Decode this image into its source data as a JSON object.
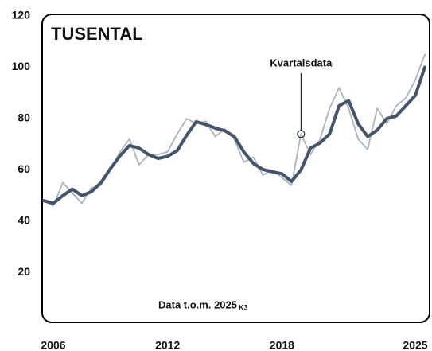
{
  "chart_data": {
    "type": "line",
    "title": "TUSENTAL",
    "note": "Data t.o.m. 2025",
    "note_sub": "K3",
    "x": [
      2005.5,
      2006,
      2006.5,
      2007,
      2007.5,
      2008,
      2008.5,
      2009,
      2009.5,
      2010,
      2010.5,
      2011,
      2011.5,
      2012,
      2012.5,
      2013,
      2013.5,
      2014,
      2014.5,
      2015,
      2015.5,
      2016,
      2016.5,
      2017,
      2017.5,
      2018,
      2018.5,
      2019,
      2019.5,
      2020,
      2020.5,
      2021,
      2021.5,
      2022,
      2022.5,
      2023,
      2023.5,
      2024,
      2024.5,
      2025,
      2025.5
    ],
    "series": [
      {
        "color": "#a9b4c2",
        "width": 1.8,
        "values": [
          48,
          46,
          55,
          51,
          47,
          53,
          54,
          60,
          67,
          72,
          62,
          66,
          66,
          67,
          74,
          80,
          78,
          79,
          73,
          76,
          72,
          63,
          65,
          58,
          60,
          57,
          54,
          74,
          66,
          72,
          84,
          92,
          84,
          72,
          68,
          84,
          78,
          85,
          88,
          95,
          105
        ]
      },
      {
        "color": "#44546a",
        "width": 4,
        "values": [
          48,
          47,
          50,
          52.5,
          50,
          51.5,
          55,
          60.5,
          65.5,
          69.5,
          68.5,
          66,
          64.5,
          65.3,
          67.5,
          73.5,
          78.8,
          77.7,
          76.3,
          75.3,
          73,
          67,
          62.5,
          60.2,
          59.3,
          58.5,
          55.5,
          60,
          68.5,
          70.5,
          74,
          85,
          87,
          78,
          73,
          75.5,
          80,
          81,
          85,
          89,
          100
        ]
      }
    ],
    "annotation": {
      "text": "Kvartalsdata",
      "x": 2019,
      "y": 74
    },
    "xlim": [
      2005.5,
      2025.75
    ],
    "xticks": [
      2006,
      2012,
      2018,
      2025
    ],
    "ylim": [
      0,
      120
    ],
    "yticks": [
      20,
      40,
      60,
      80,
      100,
      120
    ],
    "grid": false
  }
}
